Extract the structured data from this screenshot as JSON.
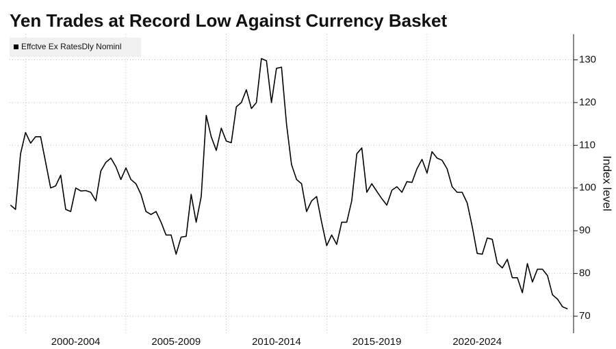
{
  "chart_data": {
    "type": "line",
    "title": "Yen Trades at Record Low Against Currency Basket",
    "y_axis_label": "Index level",
    "legend": "top-left",
    "grid": true,
    "series": [
      {
        "name": "Effctve Ex RatesDly Nominl",
        "color": "#000000",
        "values": [
          96,
          95,
          108,
          113,
          110.5,
          112,
          112,
          106,
          100,
          100.5,
          103,
          95,
          94.5,
          100,
          99.3,
          99.4,
          99,
          97,
          104,
          106,
          107,
          105,
          102,
          104.7,
          102,
          101,
          98.5,
          94.5,
          93.8,
          94.5,
          92,
          89,
          89,
          84.5,
          88.5,
          88.7,
          98.5,
          92,
          98,
          117,
          112,
          108.8,
          114,
          111,
          110.6,
          119,
          120,
          123,
          118.6,
          120,
          130.3,
          129.8,
          120,
          128,
          128.3,
          115,
          105.5,
          102,
          101,
          94.5,
          97,
          98,
          92,
          86.5,
          89,
          86.8,
          92,
          92,
          97,
          108,
          109.4,
          99,
          101,
          99.2,
          97.5,
          96,
          99.5,
          100.3,
          99,
          101.5,
          101.3,
          104.5,
          106.7,
          103.5,
          108.5,
          107,
          106.5,
          104.5,
          100.3,
          99,
          99,
          96.5,
          91,
          84.7,
          84.5,
          88.3,
          88,
          82.4,
          81.3,
          83.3,
          79,
          79,
          75.5,
          82.3,
          78,
          81,
          81,
          79.5,
          75,
          74,
          72.2,
          71.7
        ]
      }
    ],
    "x": [
      1999.25,
      1999.5,
      1999.75,
      2000,
      2000.25,
      2000.5,
      2000.75,
      2001,
      2001.25,
      2001.5,
      2001.75,
      2002,
      2002.25,
      2002.5,
      2002.75,
      2003,
      2003.25,
      2003.5,
      2003.75,
      2004,
      2004.25,
      2004.5,
      2004.75,
      2005,
      2005.25,
      2005.5,
      2005.75,
      2006,
      2006.25,
      2006.5,
      2006.75,
      2007,
      2007.25,
      2007.5,
      2007.75,
      2008,
      2008.25,
      2008.5,
      2008.75,
      2009,
      2009.25,
      2009.5,
      2009.75,
      2010,
      2010.25,
      2010.5,
      2010.75,
      2011,
      2011.25,
      2011.5,
      2011.75,
      2012,
      2012.25,
      2012.5,
      2012.75,
      2013,
      2013.25,
      2013.5,
      2013.75,
      2014,
      2014.25,
      2014.5,
      2014.75,
      2015,
      2015.25,
      2015.5,
      2015.75,
      2016,
      2016.25,
      2016.5,
      2016.75,
      2017,
      2017.25,
      2017.5,
      2017.75,
      2018,
      2018.25,
      2018.5,
      2018.75,
      2019,
      2019.25,
      2019.5,
      2019.75,
      2020,
      2020.25,
      2020.5,
      2020.75,
      2021,
      2021.25,
      2021.5,
      2021.75,
      2022,
      2022.25,
      2022.5,
      2022.75,
      2023,
      2023.25,
      2023.5,
      2023.75,
      2024,
      2024.25,
      2024.5,
      2024.75,
      2025,
      2025.25,
      2025.5,
      2025.75,
      2026,
      2026.25,
      2026.5,
      2026.75,
      2027
    ],
    "xlim": [
      1999,
      2027.3
    ],
    "xticks": [
      {
        "value": 2000,
        "label": "2000-2004"
      },
      {
        "value": 2005,
        "label": "2005-2009"
      },
      {
        "value": 2010,
        "label": "2010-2014"
      },
      {
        "value": 2015,
        "label": "2015-2019"
      },
      {
        "value": 2020,
        "label": "2020-2024"
      }
    ],
    "ylim": [
      66,
      136
    ],
    "yticks": [
      70,
      80,
      90,
      100,
      110,
      120,
      130
    ]
  }
}
